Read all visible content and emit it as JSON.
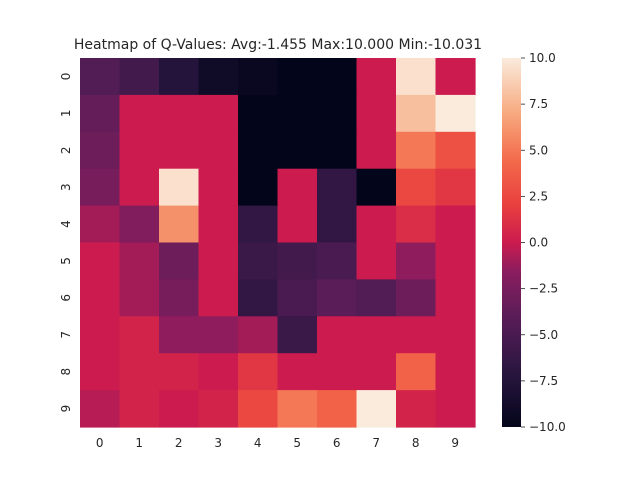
{
  "chart_data": {
    "type": "heatmap",
    "title": "Heatmap of Q-Values: Avg:-1.455 Max:10.000 Min:-10.031",
    "xlabel": "",
    "ylabel": "",
    "x_tick_labels": [
      "0",
      "1",
      "2",
      "3",
      "4",
      "5",
      "6",
      "7",
      "8",
      "9"
    ],
    "y_tick_labels": [
      "0",
      "1",
      "2",
      "3",
      "4",
      "5",
      "6",
      "7",
      "8",
      "9"
    ],
    "values": [
      [
        -4.5,
        -5.5,
        -7.5,
        -9.0,
        -9.5,
        -10.0,
        -10.0,
        0.0,
        9.5,
        0.0
      ],
      [
        -3.5,
        0.0,
        0.0,
        0.0,
        -10.0,
        -10.0,
        -10.0,
        0.0,
        8.0,
        10.0
      ],
      [
        -3.0,
        0.0,
        0.0,
        0.0,
        -10.0,
        -10.0,
        -10.0,
        0.0,
        5.0,
        3.0
      ],
      [
        -2.5,
        0.0,
        9.5,
        0.0,
        -10.0,
        0.0,
        -6.5,
        -10.0,
        2.5,
        1.5
      ],
      [
        -1.0,
        -2.0,
        6.0,
        0.0,
        -6.5,
        0.0,
        -6.5,
        0.0,
        1.0,
        0.0
      ],
      [
        0.0,
        -1.0,
        -3.0,
        0.0,
        -6.0,
        -5.5,
        -5.0,
        0.0,
        -1.5,
        0.0
      ],
      [
        0.0,
        -1.0,
        -2.5,
        0.0,
        -6.5,
        -5.0,
        -4.0,
        -4.5,
        -3.0,
        0.0
      ],
      [
        0.0,
        0.5,
        -1.5,
        -1.5,
        -1.0,
        -6.0,
        0.0,
        0.0,
        0.0,
        0.0
      ],
      [
        0.0,
        0.5,
        0.5,
        0.0,
        1.5,
        0.0,
        0.0,
        0.0,
        4.0,
        0.0
      ],
      [
        -0.5,
        0.5,
        0.0,
        0.5,
        2.5,
        5.0,
        4.0,
        10.0,
        0.5,
        0.0
      ]
    ],
    "vmin": -10.031,
    "vmax": 10.0,
    "colormap": "rocket",
    "colorbar": {
      "ticks": [
        10.0,
        7.5,
        5.0,
        2.5,
        0.0,
        -2.5,
        -5.0,
        -7.5,
        -10.0
      ],
      "tick_labels": [
        "10.0",
        "7.5",
        "5.0",
        "2.5",
        "0.0",
        "−2.5",
        "−5.0",
        "−7.5",
        "−10.0"
      ],
      "range": [
        -10.0,
        10.0
      ]
    },
    "colormap_stops": [
      {
        "v": 0.0,
        "color": "#03051a"
      },
      {
        "v": 0.15,
        "color": "#2a1640"
      },
      {
        "v": 0.3,
        "color": "#5a1d58"
      },
      {
        "v": 0.42,
        "color": "#8a1d5e"
      },
      {
        "v": 0.5,
        "color": "#cb1b4f"
      },
      {
        "v": 0.6,
        "color": "#e83f3f"
      },
      {
        "v": 0.72,
        "color": "#f3694a"
      },
      {
        "v": 0.85,
        "color": "#f7a97e"
      },
      {
        "v": 1.0,
        "color": "#faebdd"
      }
    ]
  }
}
